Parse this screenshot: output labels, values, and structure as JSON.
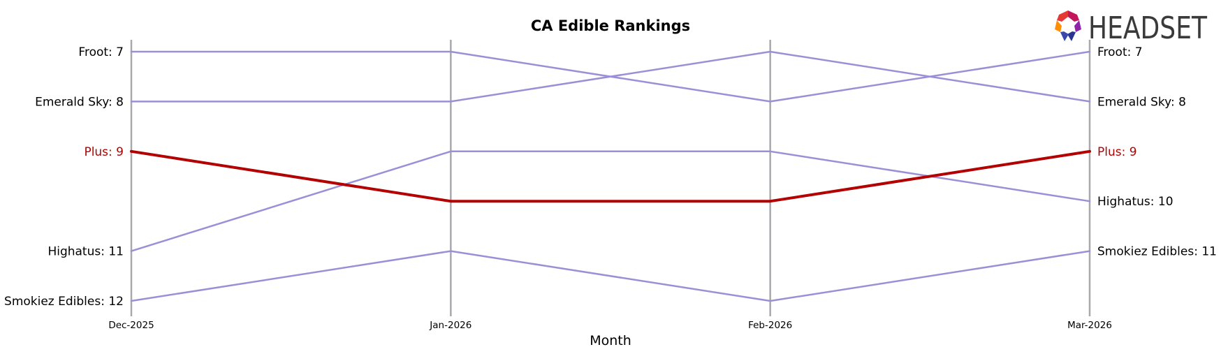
{
  "chart_data": {
    "type": "line",
    "title": "CA Edible Rankings",
    "xlabel": "Month",
    "ylabel": "",
    "categories": [
      "Dec-2025",
      "Jan-2026",
      "Feb-2026",
      "Mar-2026"
    ],
    "y_inverted": true,
    "grid": "vertical lines at each month",
    "highlight_color": "#b30000",
    "other_color": "#9b8fd6",
    "series": [
      {
        "name": "Froot",
        "values": [
          7,
          7,
          8,
          7
        ],
        "highlight": false,
        "start_label": "Froot: 7",
        "end_label": "Froot: 7"
      },
      {
        "name": "Emerald Sky",
        "values": [
          8,
          8,
          7,
          8
        ],
        "highlight": false,
        "start_label": "Emerald Sky: 8",
        "end_label": "Emerald Sky: 8"
      },
      {
        "name": "Highatus",
        "values": [
          11,
          9,
          9,
          10
        ],
        "highlight": false,
        "start_label": "Highatus: 11",
        "end_label": "Highatus: 10"
      },
      {
        "name": "Smokiez Edibles",
        "values": [
          12,
          11,
          12,
          11
        ],
        "highlight": false,
        "start_label": "Smokiez Edibles: 12",
        "end_label": "Smokiez Edibles: 11"
      },
      {
        "name": "Plus",
        "values": [
          9,
          10,
          10,
          9
        ],
        "highlight": true,
        "start_label": "Plus: 9",
        "end_label": "Plus: 9"
      }
    ]
  },
  "logo": {
    "text": "HEADSET"
  }
}
